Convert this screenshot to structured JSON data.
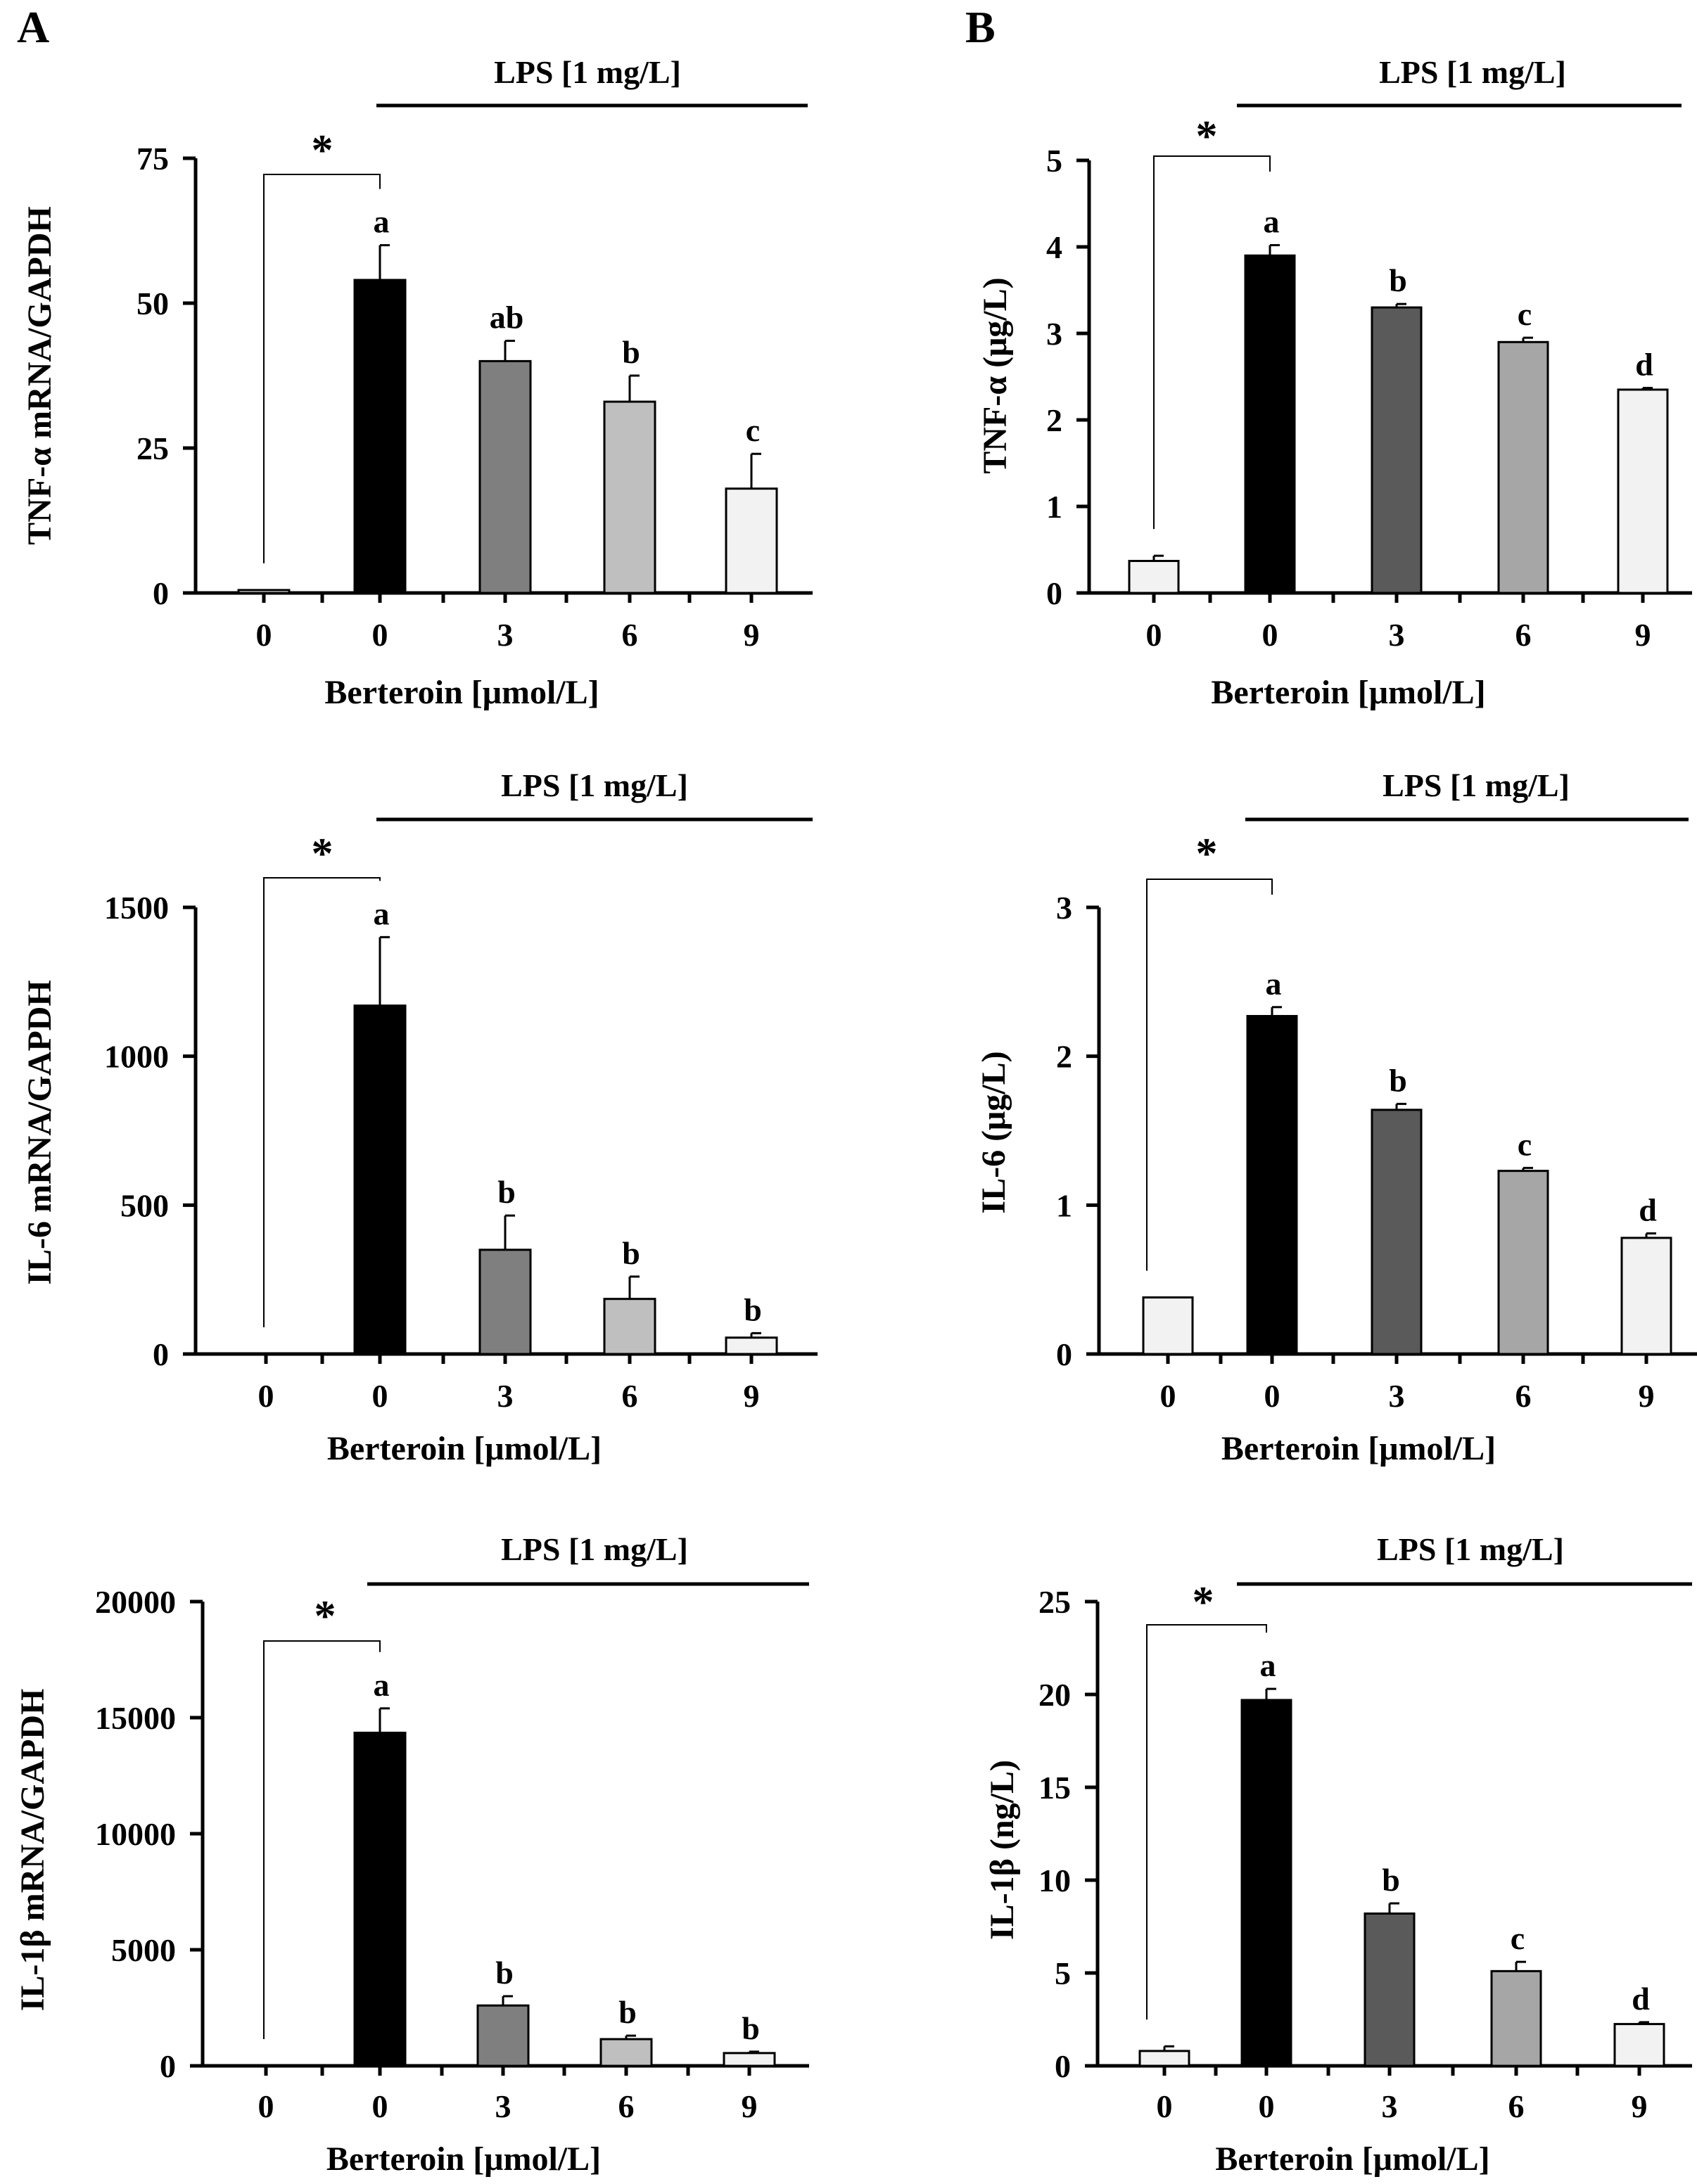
{
  "figure": {
    "panel_a_label": "A",
    "panel_b_label": "B"
  },
  "colors": {
    "bars": [
      "#f2f2f2",
      "#000000",
      "#5a5a5a",
      "#a6a6a6",
      "#f2f2f2"
    ],
    "bars_a_mrna": [
      "#f2f2f2",
      "#000000",
      "#7f7f7f",
      "#bfbfbf",
      "#f2f2f2"
    ]
  },
  "chart_data": [
    {
      "id": "a1",
      "panel": "A",
      "type": "bar",
      "categories": [
        "0",
        "0",
        "3",
        "6",
        "9"
      ],
      "values": [
        0.5,
        54,
        40,
        33,
        18
      ],
      "errors": [
        0,
        6,
        3.5,
        4.5,
        6
      ],
      "letters": [
        "",
        "a",
        "ab",
        "b",
        "c"
      ],
      "ylabel": "TNF-α mRNA/GAPDH",
      "xlabel": "Berteroin [μmol/L]",
      "ylim": [
        0,
        75
      ],
      "yticks": [
        "0",
        "25",
        "50",
        "75"
      ],
      "lps_label": "LPS [1 mg/L]",
      "significance": "*"
    },
    {
      "id": "b1",
      "panel": "B",
      "type": "bar",
      "categories": [
        "0",
        "0",
        "3",
        "6",
        "9"
      ],
      "values": [
        0.37,
        3.9,
        3.3,
        2.9,
        2.35
      ],
      "errors": [
        0.06,
        0.12,
        0.04,
        0.05,
        0.02
      ],
      "letters": [
        "",
        "a",
        "b",
        "c",
        "d"
      ],
      "ylabel": "TNF-α (μg/L)",
      "xlabel": "Berteroin [μmol/L]",
      "ylim": [
        0,
        5
      ],
      "yticks": [
        "0",
        "1",
        "2",
        "3",
        "4",
        "5"
      ],
      "lps_label": "LPS [1 mg/L]",
      "significance": "*"
    },
    {
      "id": "a2",
      "panel": "A",
      "type": "bar",
      "categories": [
        "0",
        "0",
        "3",
        "6",
        "9"
      ],
      "values": [
        0,
        1170,
        350,
        185,
        55
      ],
      "errors": [
        0,
        230,
        115,
        75,
        15
      ],
      "letters": [
        "",
        "a",
        "b",
        "b",
        "b"
      ],
      "ylabel": "IL-6 mRNA/GAPDH",
      "xlabel": "Berteroin [μmol/L]",
      "ylim": [
        0,
        1500
      ],
      "yticks": [
        "0",
        "500",
        "1000",
        "1500"
      ],
      "lps_label": "LPS [1 mg/L]",
      "significance": "*"
    },
    {
      "id": "b2",
      "panel": "B",
      "type": "bar",
      "categories": [
        "0",
        "0",
        "3",
        "6",
        "9"
      ],
      "values": [
        0.38,
        2.27,
        1.64,
        1.23,
        0.78
      ],
      "errors": [
        0,
        0.06,
        0.04,
        0.02,
        0.03
      ],
      "letters": [
        "",
        "a",
        "b",
        "c",
        "d"
      ],
      "ylabel": "IL-6 (μg/L)",
      "xlabel": "Berteroin [μmol/L]",
      "ylim": [
        0,
        3
      ],
      "yticks": [
        "0",
        "1",
        "2",
        "3"
      ],
      "lps_label": "LPS [1 mg/L]",
      "significance": "*"
    },
    {
      "id": "a3",
      "panel": "A",
      "type": "bar",
      "categories": [
        "0",
        "0",
        "3",
        "6",
        "9"
      ],
      "values": [
        0,
        14350,
        2600,
        1150,
        550
      ],
      "errors": [
        0,
        1050,
        400,
        150,
        60
      ],
      "letters": [
        "",
        "a",
        "b",
        "b",
        "b"
      ],
      "ylabel": "IL-1β mRNA/GAPDH",
      "xlabel": "Berteroin [μmol/L]",
      "ylim": [
        0,
        20000
      ],
      "yticks": [
        "0",
        "5000",
        "10000",
        "15000",
        "20000"
      ],
      "lps_label": "LPS [1 mg/L]",
      "significance": "*"
    },
    {
      "id": "b3",
      "panel": "B",
      "type": "bar",
      "categories": [
        "0",
        "0",
        "3",
        "6",
        "9"
      ],
      "values": [
        0.8,
        19.7,
        8.2,
        5.1,
        2.25
      ],
      "errors": [
        0.25,
        0.6,
        0.55,
        0.5,
        0.1
      ],
      "letters": [
        "",
        "a",
        "b",
        "c",
        "d"
      ],
      "ylabel": "IL-1β (ng/L)",
      "xlabel": "Berteroin [μmol/L]",
      "ylim": [
        0,
        25
      ],
      "yticks": [
        "0",
        "5",
        "10",
        "15",
        "20",
        "25"
      ],
      "lps_label": "LPS [1 mg/L]",
      "significance": "*"
    }
  ]
}
